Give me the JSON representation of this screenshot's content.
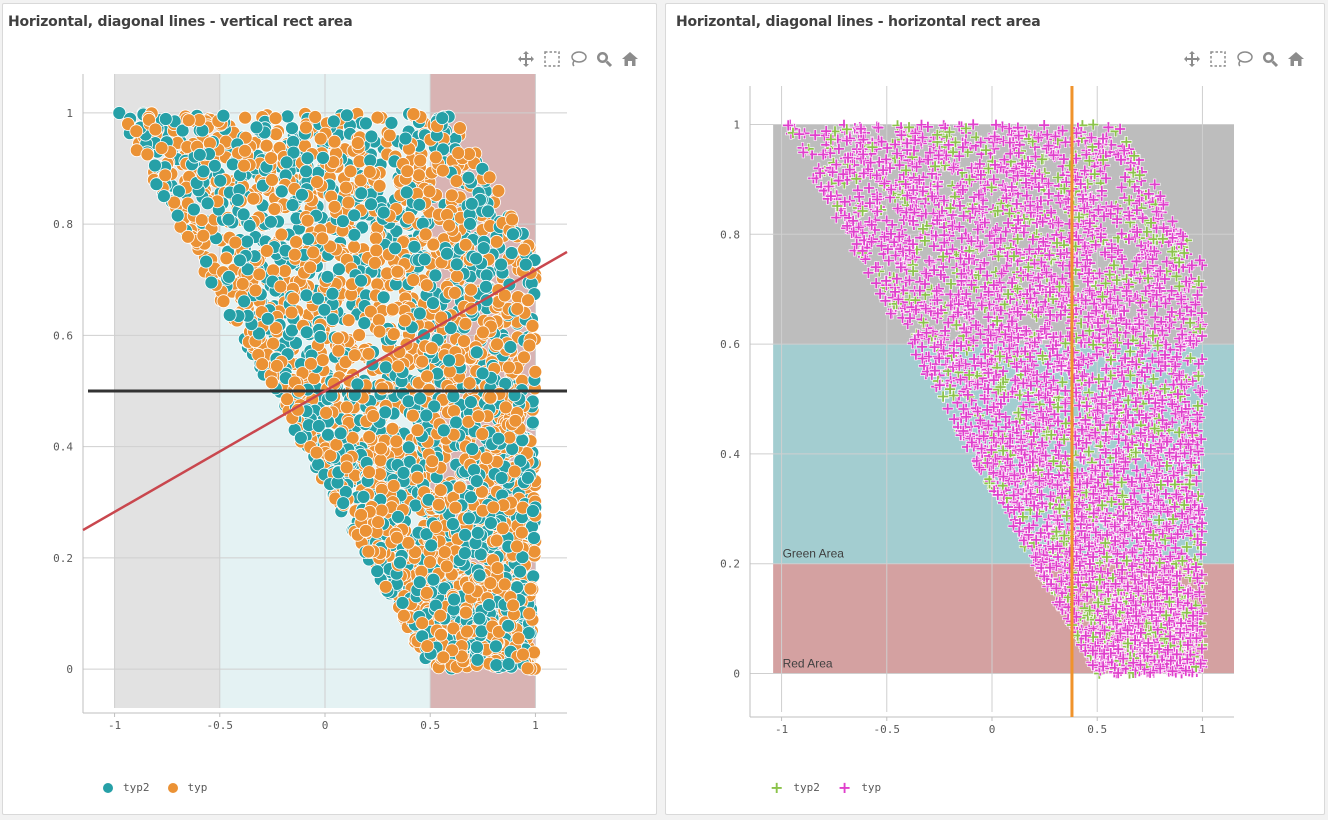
{
  "toolbar_icons": [
    "move-icon",
    "select-rect-icon",
    "lasso-icon",
    "zoom-icon",
    "home-icon"
  ],
  "chart_data": [
    {
      "type": "scatter",
      "title": "Horizontal, diagonal lines - vertical rect area",
      "xlim": [
        -1.15,
        1.15
      ],
      "ylim": [
        -0.07,
        1.07
      ],
      "x_ticks": [
        "-1",
        "-0.5",
        "0",
        "0.5",
        "1"
      ],
      "y_ticks": [
        "0",
        "0.2",
        "0.4",
        "0.6",
        "0.8",
        "1"
      ],
      "grid": true,
      "legend_position": "bottom-left",
      "series": [
        {
          "name": "typ2",
          "color": "#26a0a7",
          "marker": "circle",
          "region": "points fill a trapezoid: y from 0 to 1, x from 0.5-0.5*... left edge runs from (-1,1) to (0.5,0), right edge x≈1"
        },
        {
          "name": "typ",
          "color": "#eb9235",
          "marker": "circle"
        }
      ],
      "scatter_region": {
        "top_y": 1,
        "bottom_y": 0,
        "left_top_x": -1,
        "left_bottom_x": 0.5,
        "right_x_top": 0.6,
        "right_x_at_0_75": 1,
        "right_x_bottom": 1
      },
      "vertical_areas": [
        {
          "x0": -1,
          "x1": -0.5,
          "color": "#e2e2e2"
        },
        {
          "x0": -0.5,
          "x1": 0.5,
          "color": "#e4f2f3"
        },
        {
          "x0": 0.5,
          "x1": 1,
          "color": "#d8b3b3"
        }
      ],
      "lines": [
        {
          "kind": "horizontal",
          "y": 0.5,
          "color": "#333333"
        },
        {
          "kind": "diagonal",
          "x0": -1.15,
          "y0": 0.25,
          "x1": 1.15,
          "y1": 0.75,
          "color": "#c9474e"
        }
      ]
    },
    {
      "type": "scatter",
      "title": "Horizontal, diagonal lines - horizontal rect area",
      "xlim": [
        -1.15,
        1.15
      ],
      "ylim": [
        -0.07,
        1.07
      ],
      "x_ticks": [
        "-1",
        "-0.5",
        "0",
        "0.5",
        "1"
      ],
      "y_ticks": [
        "0",
        "0.2",
        "0.4",
        "0.6",
        "0.8",
        "1"
      ],
      "grid": true,
      "legend_position": "bottom-left",
      "series": [
        {
          "name": "typ2",
          "color": "#8bc34a",
          "marker": "plus"
        },
        {
          "name": "typ",
          "color": "#e03fcc",
          "marker": "plus"
        }
      ],
      "scatter_region": {
        "top_y": 1,
        "bottom_y": 0,
        "left_top_x": -1,
        "left_bottom_x": 0.5,
        "right_x_top": 0.6,
        "right_x_at_0_75": 1,
        "right_x_bottom": 1
      },
      "horizontal_areas": [
        {
          "y0": 0,
          "y1": 0.2,
          "color": "#d4a1a1",
          "label": "Red Area"
        },
        {
          "y0": 0.2,
          "y1": 0.6,
          "color": "#a3cdd0",
          "label": "Green Area"
        },
        {
          "y0": 0.6,
          "y1": 1,
          "color": "#bdbdbd",
          "label": ""
        }
      ],
      "lines": [
        {
          "kind": "vertical",
          "x": 0.38,
          "color": "#f0932b"
        }
      ]
    }
  ]
}
